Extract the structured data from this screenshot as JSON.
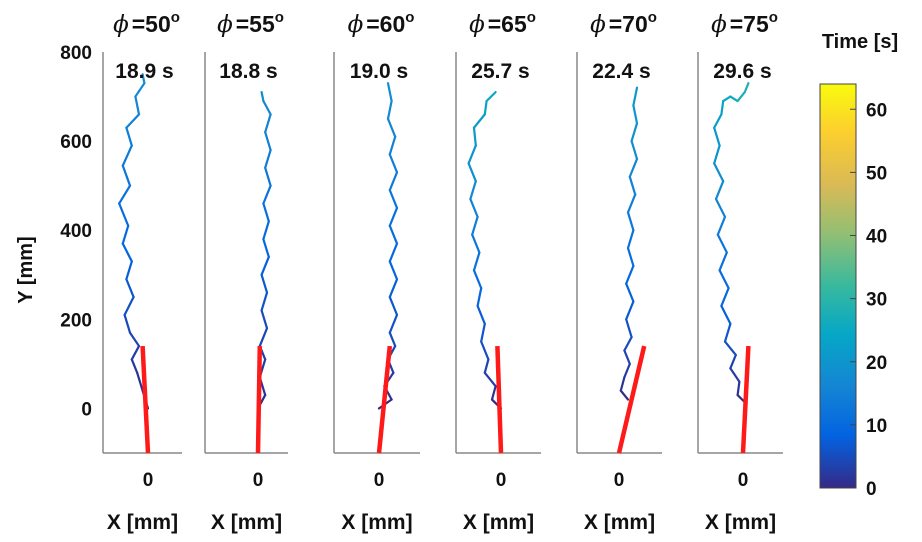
{
  "chart_data": {
    "type": "line",
    "y_axis_label": "Y [mm]",
    "y_ticks": [
      800,
      600,
      400,
      200,
      0
    ],
    "ylim": [
      -100,
      800
    ],
    "colorbar": {
      "label": "Time [s]",
      "ticks": [
        60,
        50,
        40,
        30,
        20,
        10,
        0
      ],
      "range": [
        0,
        64
      ],
      "colormap": "parula"
    },
    "line_color": "#ff1a1a",
    "panels": [
      {
        "phi_label": "=50",
        "degree_symbol": "o",
        "time_label": "18.9 s",
        "duration": 18.9,
        "x_label": "X [mm]",
        "x_tick": "0",
        "line": [
          [
            0,
            -100
          ],
          [
            -6,
            140
          ]
        ],
        "trajectory": [
          [
            0,
            0
          ],
          [
            -6,
            40
          ],
          [
            -12,
            80
          ],
          [
            -18,
            110
          ],
          [
            -10,
            140
          ],
          [
            -20,
            170
          ],
          [
            -26,
            210
          ],
          [
            -16,
            250
          ],
          [
            -24,
            290
          ],
          [
            -18,
            330
          ],
          [
            -28,
            370
          ],
          [
            -22,
            410
          ],
          [
            -32,
            460
          ],
          [
            -20,
            500
          ],
          [
            -28,
            545
          ],
          [
            -18,
            590
          ],
          [
            -24,
            630
          ],
          [
            -10,
            660
          ],
          [
            -14,
            700
          ],
          [
            -4,
            730
          ],
          [
            -6,
            750
          ]
        ]
      },
      {
        "phi_label": "=55",
        "degree_symbol": "o",
        "time_label": "18.8 s",
        "duration": 18.8,
        "x_label": "X [mm]",
        "x_tick": "0",
        "line": [
          [
            0,
            -100
          ],
          [
            2,
            140
          ]
        ],
        "trajectory": [
          [
            0,
            0
          ],
          [
            8,
            30
          ],
          [
            2,
            70
          ],
          [
            8,
            110
          ],
          [
            2,
            140
          ],
          [
            10,
            180
          ],
          [
            4,
            220
          ],
          [
            10,
            260
          ],
          [
            4,
            300
          ],
          [
            12,
            340
          ],
          [
            6,
            380
          ],
          [
            12,
            420
          ],
          [
            6,
            460
          ],
          [
            14,
            500
          ],
          [
            8,
            540
          ],
          [
            14,
            580
          ],
          [
            8,
            620
          ],
          [
            14,
            660
          ],
          [
            6,
            690
          ],
          [
            4,
            710
          ]
        ]
      },
      {
        "phi_label": "=60",
        "degree_symbol": "o",
        "time_label": "19.0 s",
        "duration": 19.0,
        "x_label": "X [mm]",
        "x_tick": "0",
        "line": [
          [
            0,
            -100
          ],
          [
            12,
            140
          ]
        ],
        "trajectory": [
          [
            0,
            0
          ],
          [
            14,
            20
          ],
          [
            6,
            50
          ],
          [
            16,
            80
          ],
          [
            10,
            110
          ],
          [
            18,
            140
          ],
          [
            12,
            170
          ],
          [
            20,
            210
          ],
          [
            12,
            250
          ],
          [
            20,
            290
          ],
          [
            12,
            330
          ],
          [
            20,
            370
          ],
          [
            12,
            410
          ],
          [
            20,
            450
          ],
          [
            12,
            490
          ],
          [
            20,
            530
          ],
          [
            12,
            570
          ],
          [
            18,
            610
          ],
          [
            10,
            650
          ],
          [
            14,
            690
          ],
          [
            10,
            730
          ]
        ]
      },
      {
        "phi_label": "=65",
        "degree_symbol": "o",
        "time_label": "25.7 s",
        "duration": 25.7,
        "x_label": "X [mm]",
        "x_tick": "0",
        "line": [
          [
            0,
            -100
          ],
          [
            -4,
            140
          ]
        ],
        "trajectory": [
          [
            0,
            0
          ],
          [
            -10,
            20
          ],
          [
            -6,
            50
          ],
          [
            -18,
            80
          ],
          [
            -14,
            110
          ],
          [
            -22,
            150
          ],
          [
            -18,
            190
          ],
          [
            -26,
            230
          ],
          [
            -22,
            270
          ],
          [
            -30,
            310
          ],
          [
            -24,
            350
          ],
          [
            -32,
            390
          ],
          [
            -26,
            430
          ],
          [
            -34,
            470
          ],
          [
            -28,
            510
          ],
          [
            -36,
            550
          ],
          [
            -28,
            590
          ],
          [
            -30,
            630
          ],
          [
            -18,
            660
          ],
          [
            -16,
            690
          ],
          [
            -6,
            710
          ]
        ]
      },
      {
        "phi_label": "=70",
        "degree_symbol": "o",
        "time_label": "22.4 s",
        "duration": 22.4,
        "x_label": "X [mm]",
        "x_tick": "0",
        "line": [
          [
            0,
            -100
          ],
          [
            28,
            140
          ]
        ],
        "trajectory": [
          [
            10,
            20
          ],
          [
            2,
            40
          ],
          [
            6,
            70
          ],
          [
            12,
            100
          ],
          [
            6,
            130
          ],
          [
            14,
            160
          ],
          [
            8,
            200
          ],
          [
            16,
            240
          ],
          [
            8,
            280
          ],
          [
            16,
            320
          ],
          [
            10,
            360
          ],
          [
            16,
            400
          ],
          [
            10,
            440
          ],
          [
            18,
            480
          ],
          [
            12,
            520
          ],
          [
            20,
            560
          ],
          [
            14,
            600
          ],
          [
            20,
            640
          ],
          [
            16,
            680
          ],
          [
            20,
            720
          ]
        ]
      },
      {
        "phi_label": "=75",
        "degree_symbol": "o",
        "time_label": "29.6 s",
        "duration": 29.6,
        "x_label": "X [mm]",
        "x_tick": "0",
        "line": [
          [
            0,
            -100
          ],
          [
            6,
            140
          ]
        ],
        "trajectory": [
          [
            4,
            10
          ],
          [
            -6,
            30
          ],
          [
            -4,
            60
          ],
          [
            -14,
            90
          ],
          [
            -8,
            120
          ],
          [
            -20,
            150
          ],
          [
            -14,
            190
          ],
          [
            -24,
            230
          ],
          [
            -16,
            270
          ],
          [
            -26,
            310
          ],
          [
            -18,
            350
          ],
          [
            -28,
            390
          ],
          [
            -20,
            430
          ],
          [
            -30,
            470
          ],
          [
            -22,
            510
          ],
          [
            -32,
            550
          ],
          [
            -26,
            590
          ],
          [
            -32,
            630
          ],
          [
            -24,
            660
          ],
          [
            -22,
            690
          ],
          [
            -14,
            700
          ],
          [
            -6,
            690
          ],
          [
            2,
            710
          ],
          [
            6,
            730
          ]
        ]
      }
    ]
  }
}
